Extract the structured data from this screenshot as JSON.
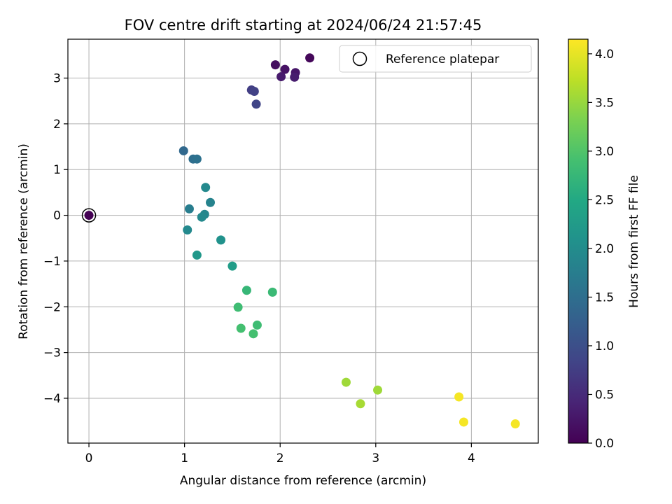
{
  "chart_data": {
    "type": "scatter",
    "title": "FOV centre drift starting at 2024/06/24 21:57:45",
    "xlabel": "Angular distance from reference (arcmin)",
    "ylabel": "Rotation from reference (arcmin)",
    "xlim": [
      -0.22,
      4.7
    ],
    "ylim": [
      -4.98,
      3.85
    ],
    "xticks": [
      0,
      1,
      2,
      3,
      4
    ],
    "yticks": [
      -4,
      -3,
      -2,
      -1,
      0,
      1,
      2,
      3
    ],
    "xtick_labels": [
      "0",
      "1",
      "2",
      "3",
      "4"
    ],
    "ytick_labels": [
      "−4",
      "−3",
      "−2",
      "−1",
      "0",
      "1",
      "2",
      "3"
    ],
    "grid": true,
    "legend": {
      "placement": "upper-right",
      "entries": [
        "Reference platepar"
      ]
    },
    "reference_point": {
      "x": 0,
      "y": 0,
      "c": 0.0
    },
    "colormap": "viridis",
    "colorbar": {
      "label": "Hours from first FF file",
      "range": [
        0,
        4.15
      ],
      "ticks": [
        0.0,
        0.5,
        1.0,
        1.5,
        2.0,
        2.5,
        3.0,
        3.5,
        4.0
      ],
      "tick_labels": [
        "0.0",
        "0.5",
        "1.0",
        "1.5",
        "2.0",
        "2.5",
        "3.0",
        "3.5",
        "4.0"
      ]
    },
    "points": [
      {
        "x": 0.0,
        "y": 0.0,
        "c": 0.0
      },
      {
        "x": 2.31,
        "y": 3.44,
        "c": 0.08
      },
      {
        "x": 1.95,
        "y": 3.29,
        "c": 0.15
      },
      {
        "x": 2.05,
        "y": 3.19,
        "c": 0.2
      },
      {
        "x": 2.16,
        "y": 3.12,
        "c": 0.25
      },
      {
        "x": 2.01,
        "y": 3.03,
        "c": 0.3
      },
      {
        "x": 2.15,
        "y": 3.02,
        "c": 0.33
      },
      {
        "x": 1.7,
        "y": 2.74,
        "c": 0.75
      },
      {
        "x": 1.73,
        "y": 2.71,
        "c": 0.8
      },
      {
        "x": 1.75,
        "y": 2.43,
        "c": 0.85
      },
      {
        "x": 0.99,
        "y": 1.41,
        "c": 1.4
      },
      {
        "x": 1.09,
        "y": 1.23,
        "c": 1.5
      },
      {
        "x": 1.13,
        "y": 1.23,
        "c": 1.55
      },
      {
        "x": 1.22,
        "y": 0.61,
        "c": 1.95
      },
      {
        "x": 1.05,
        "y": 0.14,
        "c": 1.75
      },
      {
        "x": 1.27,
        "y": 0.28,
        "c": 1.85
      },
      {
        "x": 1.21,
        "y": 0.02,
        "c": 1.9
      },
      {
        "x": 1.18,
        "y": -0.04,
        "c": 1.95
      },
      {
        "x": 1.03,
        "y": -0.32,
        "c": 1.95
      },
      {
        "x": 1.38,
        "y": -0.54,
        "c": 2.1
      },
      {
        "x": 1.13,
        "y": -0.87,
        "c": 2.2
      },
      {
        "x": 1.5,
        "y": -1.11,
        "c": 2.3
      },
      {
        "x": 1.65,
        "y": -1.64,
        "c": 2.75
      },
      {
        "x": 1.92,
        "y": -1.68,
        "c": 2.8
      },
      {
        "x": 1.56,
        "y": -2.01,
        "c": 2.85
      },
      {
        "x": 1.76,
        "y": -2.4,
        "c": 2.85
      },
      {
        "x": 1.59,
        "y": -2.47,
        "c": 2.9
      },
      {
        "x": 1.72,
        "y": -2.59,
        "c": 2.9
      },
      {
        "x": 2.69,
        "y": -3.65,
        "c": 3.55
      },
      {
        "x": 3.02,
        "y": -3.82,
        "c": 3.55
      },
      {
        "x": 2.84,
        "y": -4.12,
        "c": 3.6
      },
      {
        "x": 3.87,
        "y": -3.97,
        "c": 4.1
      },
      {
        "x": 3.92,
        "y": -4.52,
        "c": 4.1
      },
      {
        "x": 4.46,
        "y": -4.56,
        "c": 4.1
      }
    ]
  }
}
